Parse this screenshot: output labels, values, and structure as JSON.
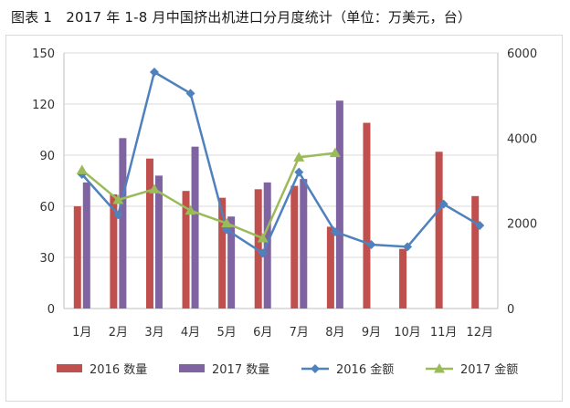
{
  "title": "图表 1　2017 年 1-8 月中国挤出机进口分月度统计（单位：万美元，台）",
  "chart_data": {
    "type": "bar+line",
    "categories": [
      "1月",
      "2月",
      "3月",
      "4月",
      "5月",
      "6月",
      "7月",
      "8月",
      "9月",
      "10月",
      "11月",
      "12月"
    ],
    "series": [
      {
        "name": "2016 数量",
        "type": "bar",
        "axis": "left",
        "color": "#C0504D",
        "values": [
          60,
          67,
          88,
          69,
          65,
          70,
          72,
          48,
          109,
          35,
          92,
          66
        ]
      },
      {
        "name": "2017 数量",
        "type": "bar",
        "axis": "left",
        "color": "#8064A2",
        "values": [
          74,
          100,
          78,
          95,
          54,
          74,
          76,
          122,
          null,
          null,
          null,
          null
        ]
      },
      {
        "name": "2016 金额",
        "type": "line",
        "axis": "right",
        "color": "#4F81BD",
        "marker": "diamond",
        "values": [
          3150,
          2200,
          5550,
          5050,
          1850,
          1300,
          3200,
          1800,
          1500,
          1450,
          2450,
          1950
        ]
      },
      {
        "name": "2017 金额",
        "type": "line",
        "axis": "right",
        "color": "#9BBB59",
        "marker": "triangle",
        "values": [
          3250,
          2550,
          2800,
          2300,
          2000,
          1650,
          3550,
          3650,
          null,
          null,
          null,
          null
        ]
      }
    ],
    "left_axis": {
      "min": 0,
      "max": 150,
      "ticks": [
        0,
        30,
        60,
        90,
        120,
        150
      ]
    },
    "right_axis": {
      "min": 0,
      "max": 6000,
      "ticks": [
        0,
        2000,
        4000,
        6000
      ]
    },
    "legend_position": "bottom"
  }
}
